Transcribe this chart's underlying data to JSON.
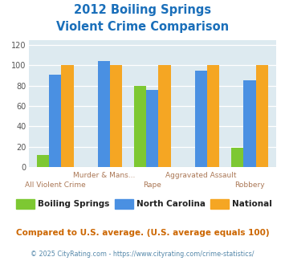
{
  "title_line1": "2012 Boiling Springs",
  "title_line2": "Violent Crime Comparison",
  "title_color": "#1a6fba",
  "categories": [
    "All Violent Crime",
    "Murder & Mans...",
    "Rape",
    "Aggravated Assault",
    "Robbery"
  ],
  "boiling_springs": [
    12,
    0,
    80,
    0,
    19
  ],
  "north_carolina": [
    91,
    104,
    76,
    95,
    85
  ],
  "national": [
    100,
    100,
    100,
    100,
    100
  ],
  "bar_colors": {
    "boiling_springs": "#7dc832",
    "north_carolina": "#4a90e2",
    "national": "#f5a623"
  },
  "ylim": [
    0,
    125
  ],
  "yticks": [
    0,
    20,
    40,
    60,
    80,
    100,
    120
  ],
  "background_color": "#ddeaf0",
  "legend_labels": [
    "Boiling Springs",
    "North Carolina",
    "National"
  ],
  "footnote1": "Compared to U.S. average. (U.S. average equals 100)",
  "footnote2": "© 2025 CityRating.com - https://www.cityrating.com/crime-statistics/",
  "footnote1_color": "#cc6600",
  "footnote2_color": "#5588aa"
}
